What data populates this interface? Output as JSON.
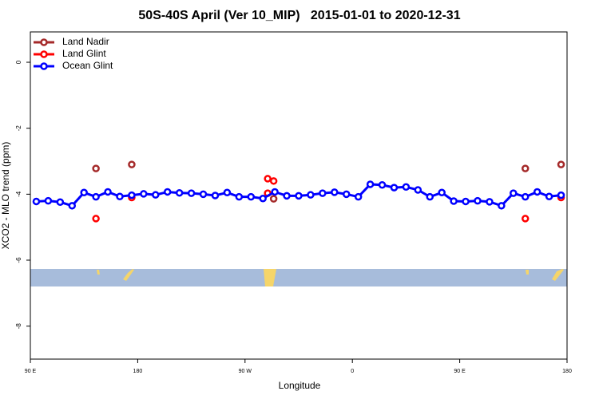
{
  "chart_data": {
    "type": "scatter",
    "title": "50S-40S April (Ver 10_MIP)   2015-01-01 to 2020-12-31",
    "x_label": "Longitude",
    "y_label": "XCO2 - MLO trend (ppm)",
    "xlim": [
      90,
      540
    ],
    "xticks": [
      {
        "value": 90,
        "label": "90 E"
      },
      {
        "value": 180,
        "label": "180"
      },
      {
        "value": 270,
        "label": "90 W"
      },
      {
        "value": 360,
        "label": "0"
      },
      {
        "value": 450,
        "label": "90 E"
      },
      {
        "value": 540,
        "label": "180"
      }
    ],
    "ylim": [
      -9,
      0.92
    ],
    "yticks": [
      0,
      -2,
      -4,
      -6,
      -8
    ],
    "legend": "top-left",
    "grid": false,
    "series": [
      {
        "name": "Land Nadir",
        "color": "#a52a2a",
        "style": "points",
        "x": [
          145,
          175,
          294,
          505,
          535
        ],
        "values": [
          -3.22,
          -3.1,
          -4.14,
          -3.22,
          -3.1
        ]
      },
      {
        "name": "Land Glint",
        "color": "#ff0000",
        "style": "points",
        "x": [
          145,
          175,
          289,
          294,
          289,
          505,
          535
        ],
        "values": [
          -4.74,
          -4.1,
          -3.53,
          -3.6,
          -3.97,
          -4.74,
          -4.1
        ]
      },
      {
        "name": "Ocean Glint",
        "color": "#0000ff",
        "style": "lines",
        "x": [
          95,
          105,
          115,
          125,
          135,
          145,
          155,
          165,
          175,
          185,
          195,
          205,
          215,
          225,
          235,
          245,
          255,
          265,
          275,
          285,
          295,
          305,
          315,
          325,
          335,
          345,
          355,
          365,
          375,
          385,
          395,
          405,
          415,
          425,
          435,
          445,
          455,
          465,
          475,
          485,
          495,
          505,
          515,
          525,
          535
        ],
        "values": [
          -4.22,
          -4.2,
          -4.24,
          -4.35,
          -3.95,
          -4.08,
          -3.93,
          -4.07,
          -4.03,
          -3.99,
          -4.02,
          -3.93,
          -3.96,
          -3.97,
          -4.0,
          -4.04,
          -3.95,
          -4.08,
          -4.08,
          -4.13,
          -3.93,
          -4.05,
          -4.05,
          -4.02,
          -3.97,
          -3.94,
          -4.0,
          -4.08,
          -3.7,
          -3.72,
          -3.8,
          -3.78,
          -3.87,
          -4.08,
          -3.95,
          -4.21,
          -4.22,
          -4.2,
          -4.23,
          -4.35,
          -3.97,
          -4.08,
          -3.93,
          -4.07,
          -4.03
        ]
      }
    ]
  }
}
